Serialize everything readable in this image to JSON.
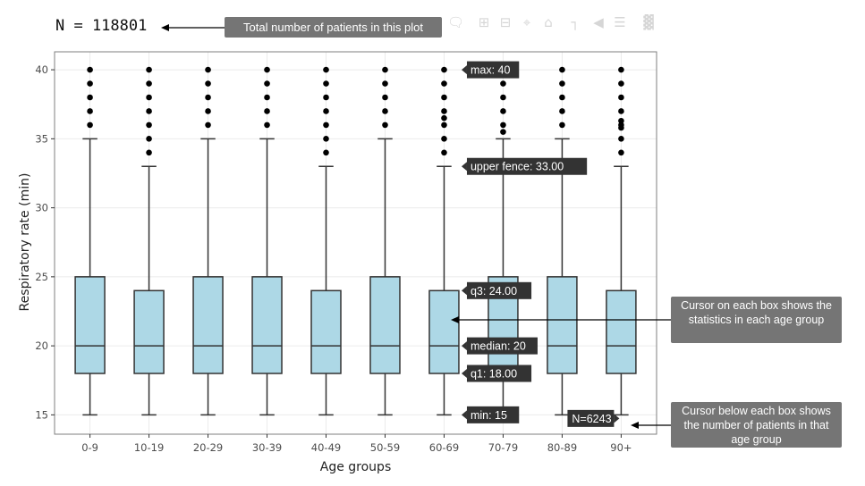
{
  "header": {
    "n_total": "N = 118801",
    "total_callout": "Total number of patients in this plot"
  },
  "modebar": {
    "icons": [
      "comment-icon",
      "zoom-in-icon",
      "zoom-out-icon",
      "autoscale-icon",
      "home-icon",
      "spike-lines-icon",
      "hover-closest-icon",
      "hover-compare-icon",
      "plotly-logo-icon"
    ]
  },
  "callouts": {
    "box_hover": "Cursor on each box shows the statistics in each age group",
    "count_hover": "Cursor below each box shows the number of patients in that age group"
  },
  "hover_labels": {
    "max": "max: 40",
    "upper_fence": "upper fence: 33.00",
    "q3": "q3: 24.00",
    "median": "median: 20",
    "q1": "q1: 18.00",
    "min": "min: 15",
    "count": "N=6243"
  },
  "colors": {
    "box_fill": "#add8e6",
    "box_line": "#333333",
    "panel_border": "#7f7f7f",
    "grid": "#ebebeb",
    "tooltip_bg": "#333333",
    "callout_bg": "#757575"
  },
  "chart_data": {
    "type": "box",
    "xlabel": "Age groups",
    "ylabel": "Respiratory rate (min)",
    "ylim": [
      13.6,
      41.3
    ],
    "yticks": [
      15,
      20,
      25,
      30,
      35,
      40
    ],
    "grid": true,
    "categories": [
      "0-9",
      "10-19",
      "20-29",
      "30-39",
      "40-49",
      "50-59",
      "60-69",
      "70-79",
      "80-89",
      "90+"
    ],
    "boxes": [
      {
        "min": 15,
        "q1": 18,
        "median": 20,
        "q3": 25,
        "upper_fence": 35,
        "outliers": [
          36,
          37,
          38,
          39,
          40
        ]
      },
      {
        "min": 15,
        "q1": 18,
        "median": 20,
        "q3": 24,
        "upper_fence": 33,
        "outliers": [
          34,
          35,
          36,
          37,
          38,
          39,
          40
        ]
      },
      {
        "min": 15,
        "q1": 18,
        "median": 20,
        "q3": 25,
        "upper_fence": 35,
        "outliers": [
          36,
          37,
          38,
          39,
          40
        ]
      },
      {
        "min": 15,
        "q1": 18,
        "median": 20,
        "q3": 25,
        "upper_fence": 35,
        "outliers": [
          36,
          37,
          38,
          39,
          40
        ]
      },
      {
        "min": 15,
        "q1": 18,
        "median": 20,
        "q3": 24,
        "upper_fence": 33,
        "outliers": [
          34,
          35,
          36,
          37,
          38,
          39,
          40
        ]
      },
      {
        "min": 15,
        "q1": 18,
        "median": 20,
        "q3": 25,
        "upper_fence": 35,
        "outliers": [
          36,
          37,
          38,
          39,
          40
        ]
      },
      {
        "min": 15,
        "q1": 18,
        "median": 20,
        "q3": 24,
        "upper_fence": 33,
        "outliers": [
          34,
          35,
          36,
          36.5,
          37,
          38,
          39,
          40
        ]
      },
      {
        "min": 15,
        "q1": 18,
        "median": 20,
        "q3": 25,
        "upper_fence": 35,
        "outliers": [
          35.5,
          36,
          37,
          38,
          39,
          40
        ]
      },
      {
        "min": 15,
        "q1": 18,
        "median": 20,
        "q3": 25,
        "upper_fence": 35,
        "outliers": [
          36,
          37,
          38,
          39,
          40
        ]
      },
      {
        "min": 15,
        "q1": 18,
        "median": 20,
        "q3": 24,
        "upper_fence": 33,
        "outliers": [
          34,
          35,
          35.8,
          36,
          36.3,
          37,
          38,
          39,
          40
        ]
      }
    ],
    "hover_group": "60-69",
    "count_group": "90+"
  }
}
